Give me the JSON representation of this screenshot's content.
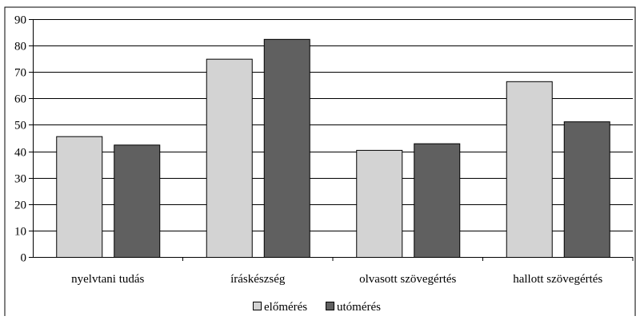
{
  "chart_data": {
    "type": "bar",
    "title": "",
    "xlabel": "",
    "ylabel": "",
    "ylim": [
      0,
      90
    ],
    "yticks": [
      0,
      10,
      20,
      30,
      40,
      50,
      60,
      70,
      80,
      90
    ],
    "grid": "horizontal",
    "legend_position": "bottom",
    "categories": [
      "nyelvtani tudás",
      "íráskészség",
      "olvasott szövegértés",
      "hallott szövegértés"
    ],
    "series": [
      {
        "name": "előmérés",
        "values": [
          45.7,
          75.0,
          40.5,
          66.5
        ],
        "color": "#d3d3d3"
      },
      {
        "name": "utómérés",
        "values": [
          42.5,
          82.5,
          43.0,
          51.3
        ],
        "color": "#606060"
      }
    ]
  }
}
